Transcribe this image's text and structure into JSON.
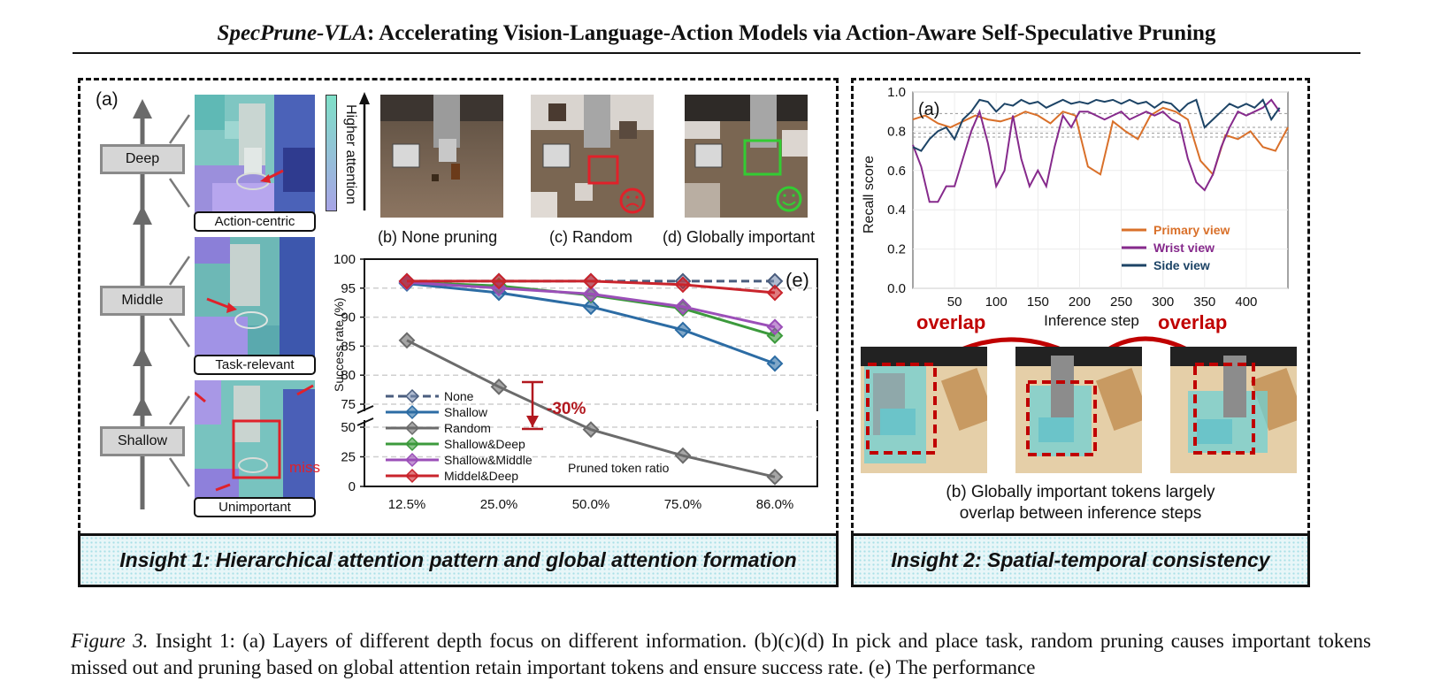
{
  "title": {
    "italic": "SpecPrune-VLA",
    "rest": ": Accelerating Vision-Language-Action Models via Action-Aware Self-Speculative Pruning"
  },
  "left_panel": {
    "label_a": "(a)",
    "layers": [
      "Deep",
      "Middle",
      "Shallow"
    ],
    "heatmap_captions": [
      "Action-centric",
      "Task-relevant",
      "Unimportant"
    ],
    "miss_label": "miss",
    "attention_bar_label": "Higher attention",
    "photos": [
      {
        "caption": "(b) None pruning"
      },
      {
        "caption": "(c) Random"
      },
      {
        "caption": "(d) Globally important"
      }
    ],
    "insight": "Insight 1: Hierarchical attention pattern and global attention formation"
  },
  "success_chart": {
    "panel_label": "(e)",
    "drop_label": "-30%",
    "xlabel_note": "Pruned token ratio"
  },
  "right_panel": {
    "panel_label": "(a)",
    "caption_line1": "(b) Globally important tokens largely",
    "caption_line2": "overlap between inference steps",
    "overlap_left": "overlap",
    "overlap_right": "overlap",
    "insight": "Insight 2: Spatial-temporal consistency"
  },
  "caption": {
    "prefix": "Figure 3.",
    "text": "Insight 1: (a) Layers of different depth focus on different information. (b)(c)(d) In pick and place task, random pruning causes important tokens missed out and pruning based on global attention retain important tokens and ensure success rate. (e) The performance"
  },
  "chart_data": [
    {
      "type": "line",
      "categories": [
        "12.5%",
        "25.0%",
        "50.0%",
        "75.0%",
        "86.0%"
      ],
      "ylabel": "Success rate (%)",
      "xlabel": "Pruned token ratio",
      "y_upper_range": [
        75,
        100
      ],
      "y_lower_range": [
        0,
        50
      ],
      "y_ticks": [
        0,
        25,
        50,
        75,
        80,
        85,
        90,
        95,
        100
      ],
      "axis_break": true,
      "legend_position": "lower-left",
      "grid": true,
      "series": [
        {
          "name": "None",
          "color": "#4a5d7e",
          "dashed": true,
          "values": [
            96.2,
            96.2,
            96.2,
            96.2,
            96.2
          ]
        },
        {
          "name": "Shallow",
          "color": "#2c6ca4",
          "values": [
            95.8,
            94.2,
            91.8,
            87.8,
            82.0
          ]
        },
        {
          "name": "Random",
          "color": "#6b6b6b",
          "values": [
            86.0,
            78.0,
            48.0,
            26.0,
            8.0
          ]
        },
        {
          "name": "Shallow&Deep",
          "color": "#3c9a3c",
          "values": [
            96.0,
            95.4,
            93.8,
            91.5,
            86.8
          ]
        },
        {
          "name": "Shallow&Middle",
          "color": "#9b4fb8",
          "values": [
            96.0,
            95.0,
            94.0,
            91.8,
            88.3
          ]
        },
        {
          "name": "Middel&Deep",
          "color": "#c9242c",
          "values": [
            96.2,
            96.2,
            96.2,
            95.6,
            94.2
          ]
        }
      ]
    },
    {
      "type": "line",
      "ylabel": "Recall score",
      "xlabel": "Inference step",
      "panel": "(a)",
      "xlim": [
        0,
        450
      ],
      "ylim": [
        0.0,
        1.0
      ],
      "x_ticks": [
        50,
        100,
        150,
        200,
        250,
        300,
        350,
        400
      ],
      "y_ticks": [
        0.0,
        0.2,
        0.4,
        0.6,
        0.8,
        1.0
      ],
      "legend_position": "lower-right",
      "grid": true,
      "series": [
        {
          "name": "Primary view",
          "color": "#d9702a",
          "x": [
            0,
            15,
            30,
            45,
            60,
            75,
            90,
            105,
            120,
            135,
            150,
            165,
            180,
            195,
            210,
            225,
            240,
            255,
            270,
            285,
            300,
            315,
            330,
            345,
            360,
            375,
            390,
            405,
            420,
            435,
            450
          ],
          "y": [
            0.86,
            0.88,
            0.84,
            0.82,
            0.85,
            0.88,
            0.86,
            0.85,
            0.87,
            0.9,
            0.88,
            0.84,
            0.9,
            0.88,
            0.62,
            0.58,
            0.85,
            0.8,
            0.76,
            0.88,
            0.92,
            0.9,
            0.86,
            0.65,
            0.58,
            0.78,
            0.76,
            0.8,
            0.72,
            0.7,
            0.82
          ]
        },
        {
          "name": "Wrist view",
          "color": "#862a8c",
          "x": [
            0,
            10,
            20,
            30,
            40,
            50,
            60,
            70,
            80,
            90,
            100,
            110,
            120,
            130,
            140,
            150,
            160,
            170,
            180,
            190,
            200,
            210,
            220,
            230,
            240,
            250,
            260,
            270,
            280,
            290,
            300,
            310,
            320,
            330,
            340,
            350,
            360,
            370,
            380,
            390,
            400,
            410,
            420,
            430,
            440
          ],
          "y": [
            0.73,
            0.62,
            0.44,
            0.44,
            0.52,
            0.52,
            0.66,
            0.8,
            0.9,
            0.74,
            0.52,
            0.6,
            0.88,
            0.66,
            0.52,
            0.6,
            0.52,
            0.72,
            0.88,
            0.82,
            0.9,
            0.9,
            0.88,
            0.86,
            0.88,
            0.9,
            0.86,
            0.88,
            0.9,
            0.88,
            0.9,
            0.86,
            0.84,
            0.66,
            0.54,
            0.5,
            0.58,
            0.72,
            0.82,
            0.9,
            0.88,
            0.9,
            0.92,
            0.96,
            0.9
          ]
        },
        {
          "name": "Side view",
          "color": "#1d4466",
          "x": [
            0,
            10,
            20,
            30,
            40,
            50,
            60,
            70,
            80,
            90,
            100,
            110,
            120,
            130,
            140,
            150,
            160,
            170,
            180,
            190,
            200,
            210,
            220,
            230,
            240,
            250,
            260,
            270,
            280,
            290,
            300,
            310,
            320,
            330,
            340,
            350,
            360,
            370,
            380,
            390,
            400,
            410,
            420,
            430,
            440
          ],
          "y": [
            0.72,
            0.7,
            0.76,
            0.8,
            0.82,
            0.76,
            0.86,
            0.9,
            0.96,
            0.95,
            0.9,
            0.94,
            0.93,
            0.96,
            0.94,
            0.95,
            0.92,
            0.94,
            0.96,
            0.94,
            0.95,
            0.94,
            0.96,
            0.95,
            0.96,
            0.94,
            0.96,
            0.94,
            0.95,
            0.92,
            0.95,
            0.94,
            0.9,
            0.94,
            0.96,
            0.82,
            0.86,
            0.9,
            0.94,
            0.92,
            0.94,
            0.92,
            0.96,
            0.86,
            0.92
          ]
        }
      ],
      "reference_lines": [
        0.89,
        0.82,
        0.79,
        0.77
      ]
    }
  ]
}
